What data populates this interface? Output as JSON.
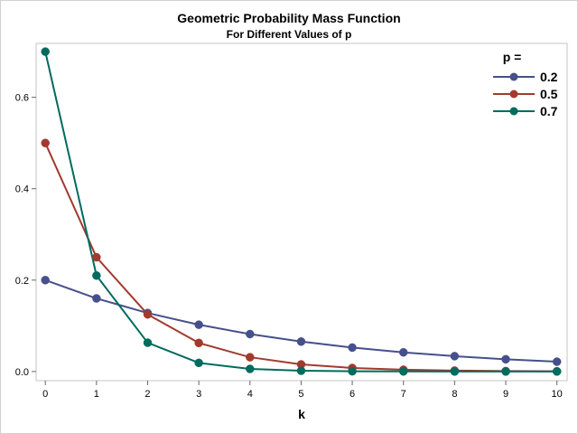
{
  "chart_data": {
    "type": "line",
    "title": "Geometric Probability Mass Function",
    "subtitle": "For Different Values of p",
    "xlabel": "k",
    "ylabel": "",
    "x": [
      0,
      1,
      2,
      3,
      4,
      5,
      6,
      7,
      8,
      9,
      10
    ],
    "x_ticks": [
      "0",
      "1",
      "2",
      "3",
      "4",
      "5",
      "6",
      "7",
      "8",
      "9",
      "10"
    ],
    "y_ticks": [
      "0.0",
      "0.2",
      "0.4",
      "0.6"
    ],
    "y_tick_values": [
      0.0,
      0.2,
      0.4,
      0.6
    ],
    "xlim": [
      -0.18,
      10.2
    ],
    "ylim": [
      -0.02,
      0.718
    ],
    "grid": false,
    "legend_title": "p =",
    "legend_position": "top-right",
    "series": [
      {
        "name": "0.2",
        "color": "#46508c",
        "values": [
          0.2,
          0.16,
          0.128,
          0.1024,
          0.0819,
          0.0655,
          0.0524,
          0.0419,
          0.0336,
          0.0268,
          0.0215
        ]
      },
      {
        "name": "0.5",
        "color": "#a23a2e",
        "values": [
          0.5,
          0.25,
          0.125,
          0.0625,
          0.0313,
          0.0156,
          0.0078,
          0.0039,
          0.002,
          0.001,
          0.0005
        ]
      },
      {
        "name": "0.7",
        "color": "#016b5e",
        "values": [
          0.7,
          0.21,
          0.063,
          0.0189,
          0.0057,
          0.0017,
          0.0005,
          0.0002,
          0.0,
          0.0,
          0.0
        ]
      }
    ]
  }
}
